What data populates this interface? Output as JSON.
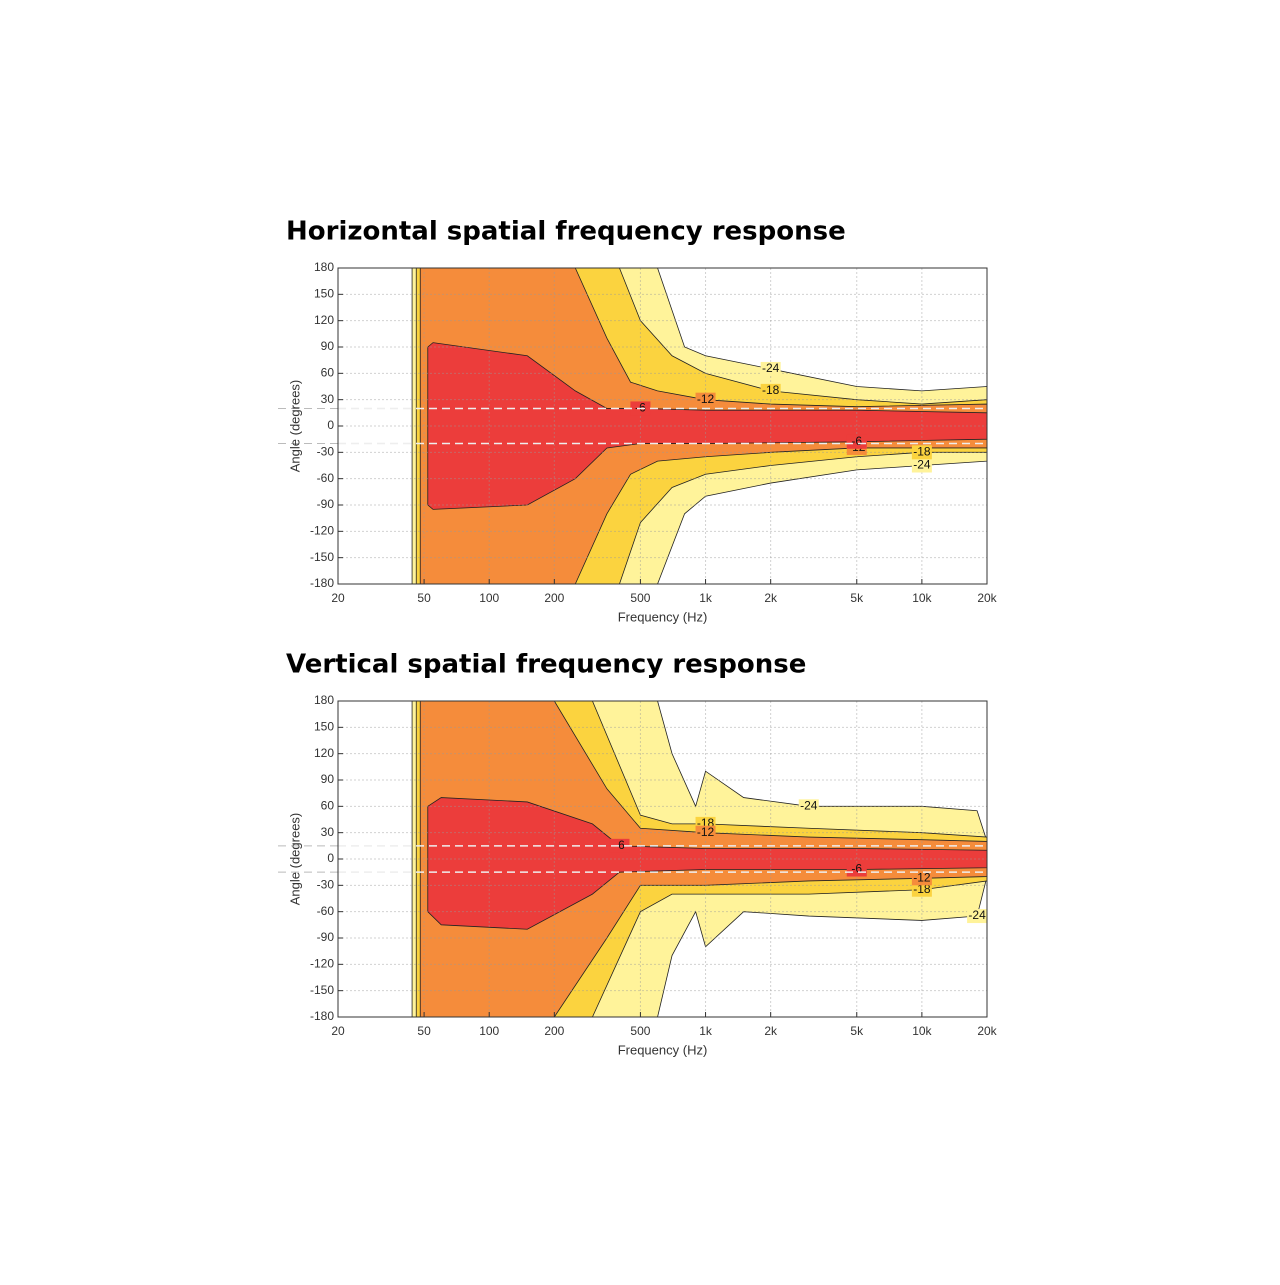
{
  "chart_data": [
    {
      "type": "contour",
      "title": "Horizontal spatial frequency response",
      "x_label": "Frequency (Hz)",
      "y_label": "Angle (degrees)",
      "xscale": "log",
      "xlim": [
        20,
        20000
      ],
      "ylim": [
        -180,
        180
      ],
      "xticks": [
        20,
        50,
        100,
        200,
        500,
        {
          "value": 1000,
          "label": "1k"
        },
        {
          "value": 2000,
          "label": "2k"
        },
        {
          "value": 5000,
          "label": "5k"
        },
        {
          "value": 10000,
          "label": "10k"
        },
        {
          "value": 20000,
          "label": "20k"
        }
      ],
      "yticks": [
        -180,
        -150,
        -120,
        -90,
        -60,
        -30,
        0,
        30,
        60,
        90,
        120,
        150,
        180
      ],
      "grid": true,
      "reference_lines": [
        20,
        -20
      ],
      "levels": [
        {
          "level": -24,
          "color": "#fff39a",
          "x": [
            44,
            600,
            800,
            1000,
            2000,
            5000,
            10000,
            20000
          ],
          "upper": [
            180,
            180,
            90,
            80,
            65,
            45,
            40,
            45
          ],
          "lower": [
            -180,
            -180,
            -100,
            -80,
            -65,
            -50,
            -45,
            -40
          ]
        },
        {
          "level": -18,
          "color": "#fbd33f",
          "x": [
            46,
            400,
            500,
            700,
            1000,
            2000,
            5000,
            10000,
            20000
          ],
          "upper": [
            180,
            180,
            120,
            80,
            60,
            40,
            30,
            25,
            30
          ],
          "lower": [
            -180,
            -180,
            -110,
            -70,
            -55,
            -45,
            -35,
            -30,
            -30
          ]
        },
        {
          "level": -12,
          "color": "#f58c3b",
          "x": [
            48,
            250,
            350,
            450,
            600,
            1000,
            2000,
            5000,
            20000
          ],
          "upper": [
            180,
            180,
            100,
            50,
            40,
            30,
            25,
            22,
            25
          ],
          "lower": [
            -180,
            -180,
            -100,
            -55,
            -40,
            -35,
            -30,
            -25,
            -25
          ]
        },
        {
          "level": -6,
          "color": "#ec3d3b",
          "x": [
            52,
            55,
            150,
            250,
            350,
            500,
            1000,
            5000,
            20000
          ],
          "upper": [
            90,
            95,
            80,
            40,
            20,
            20,
            18,
            18,
            15
          ],
          "lower": [
            -90,
            -95,
            -90,
            -60,
            -25,
            -20,
            -20,
            -18,
            -15
          ]
        }
      ]
    },
    {
      "type": "contour",
      "title": "Vertical spatial frequency response",
      "x_label": "Frequency (Hz)",
      "y_label": "Angle (degrees)",
      "xscale": "log",
      "xlim": [
        20,
        20000
      ],
      "ylim": [
        -180,
        180
      ],
      "xticks": [
        20,
        50,
        100,
        200,
        500,
        {
          "value": 1000,
          "label": "1k"
        },
        {
          "value": 2000,
          "label": "2k"
        },
        {
          "value": 5000,
          "label": "5k"
        },
        {
          "value": 10000,
          "label": "10k"
        },
        {
          "value": 20000,
          "label": "20k"
        }
      ],
      "yticks": [
        -180,
        -150,
        -120,
        -90,
        -60,
        -30,
        0,
        30,
        60,
        90,
        120,
        150,
        180
      ],
      "grid": true,
      "reference_lines": [
        15,
        -15
      ],
      "levels": [
        {
          "level": -24,
          "color": "#fff39a",
          "x": [
            44,
            600,
            700,
            900,
            1000,
            1500,
            3000,
            10000,
            18000,
            20000
          ],
          "upper": [
            180,
            180,
            120,
            60,
            100,
            70,
            60,
            60,
            55,
            20
          ],
          "lower": [
            -180,
            -180,
            -110,
            -60,
            -100,
            -60,
            -65,
            -70,
            -65,
            -20
          ]
        },
        {
          "level": -18,
          "color": "#fbd33f",
          "x": [
            46,
            300,
            500,
            700,
            1000,
            3000,
            10000,
            20000
          ],
          "upper": [
            180,
            180,
            50,
            40,
            40,
            35,
            30,
            25
          ],
          "lower": [
            -180,
            -180,
            -60,
            -40,
            -40,
            -40,
            -35,
            -25
          ]
        },
        {
          "level": -12,
          "color": "#f58c3b",
          "x": [
            48,
            200,
            350,
            500,
            1000,
            3000,
            10000,
            20000
          ],
          "upper": [
            180,
            180,
            80,
            35,
            30,
            25,
            22,
            20
          ],
          "lower": [
            -180,
            -180,
            -90,
            -30,
            -30,
            -25,
            -22,
            -20
          ]
        },
        {
          "level": -6,
          "color": "#ec3d3b",
          "x": [
            52,
            60,
            150,
            300,
            400,
            1000,
            5000,
            20000
          ],
          "upper": [
            60,
            70,
            65,
            40,
            15,
            12,
            12,
            10
          ],
          "lower": [
            -60,
            -75,
            -80,
            -40,
            -15,
            -12,
            -12,
            -10
          ]
        }
      ]
    }
  ]
}
